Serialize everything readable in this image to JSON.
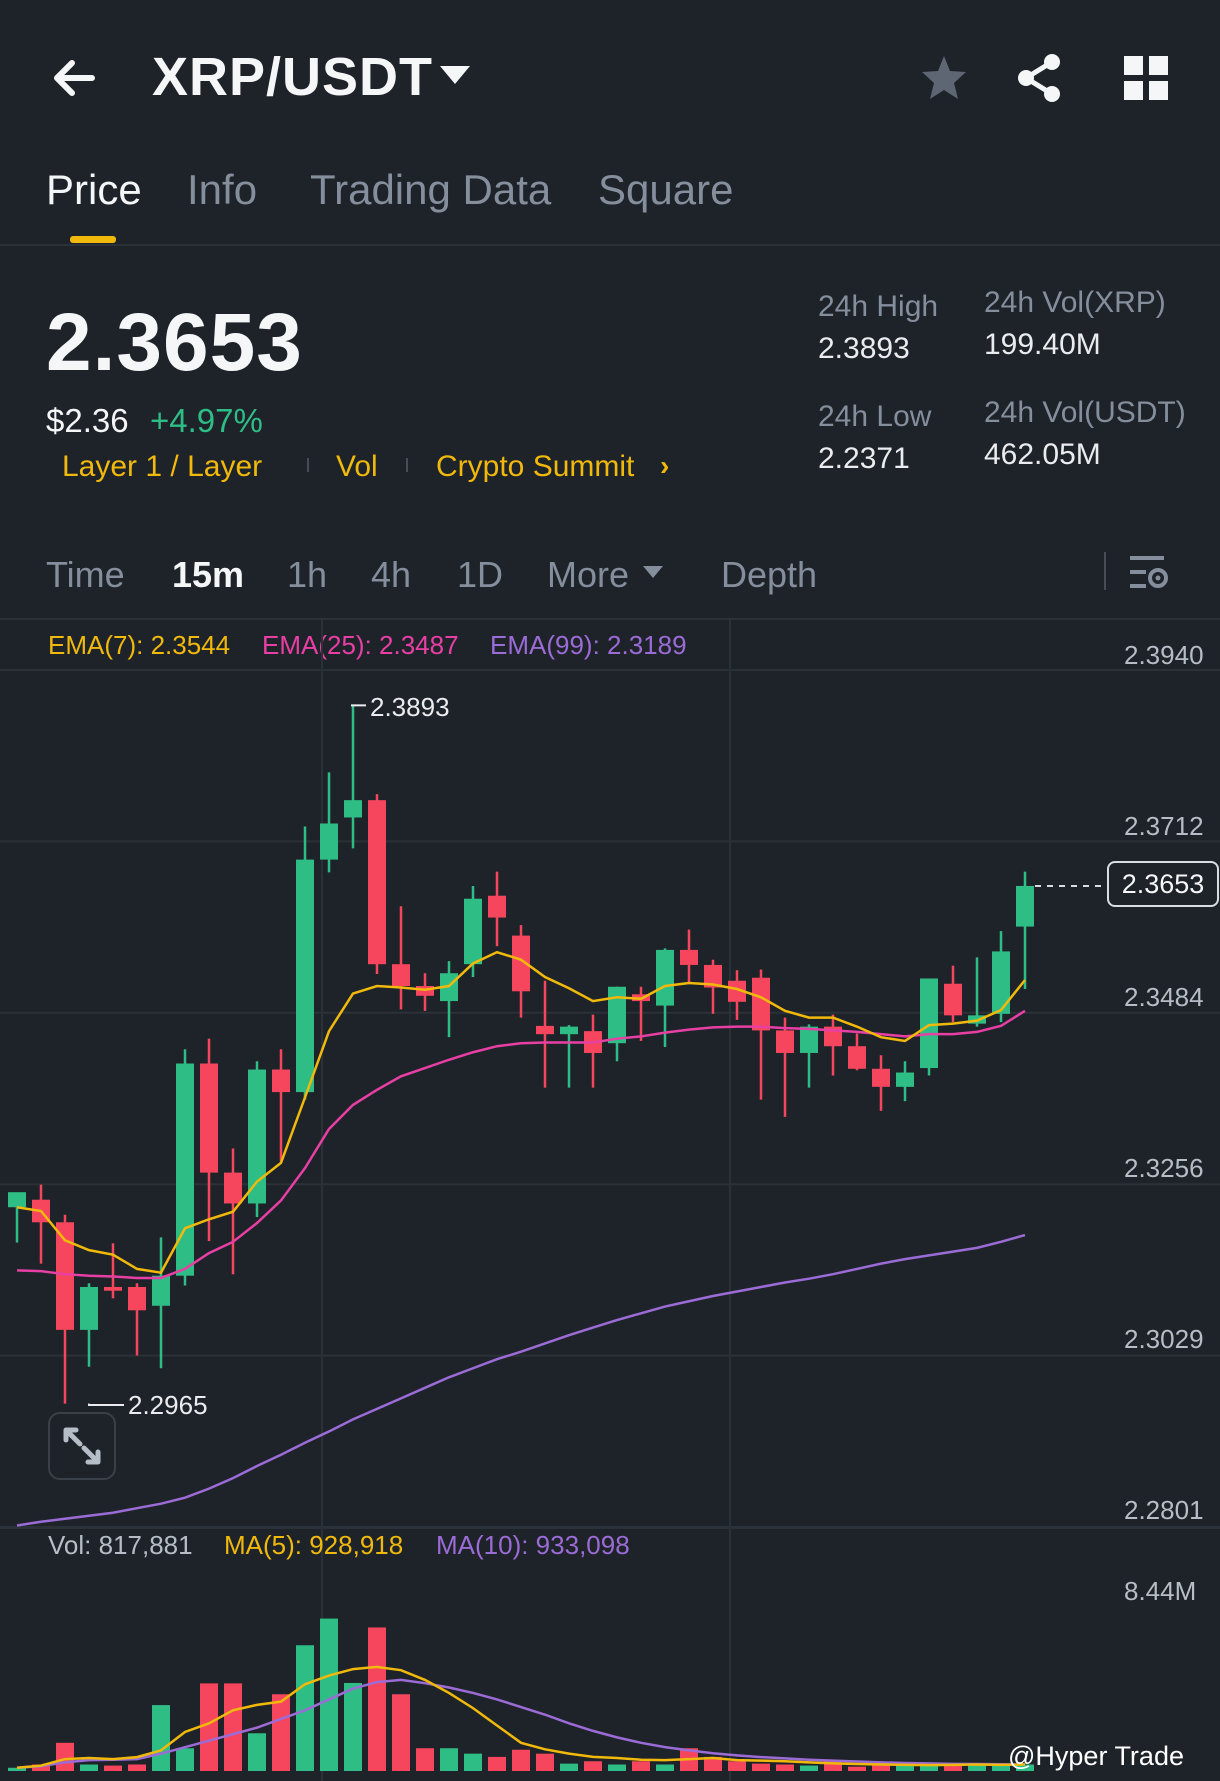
{
  "header": {
    "pair": "XRP/USDT",
    "icons": [
      "back-arrow-icon",
      "star-icon",
      "share-icon",
      "grid-menu-icon"
    ]
  },
  "tabs": [
    "Price",
    "Info",
    "Trading Data",
    "Square"
  ],
  "ticker": {
    "price": "2.3653",
    "usd_price": "$2.36",
    "change": "+4.97%",
    "tags": [
      "Layer 1 / Layer",
      "Vol",
      "Crypto Summit"
    ],
    "high_label": "24h High",
    "high_value": "2.3893",
    "low_label": "24h Low",
    "low_value": "2.2371",
    "vol_xrp_label": "24h Vol(XRP)",
    "vol_xrp_value": "199.40M",
    "vol_usdt_label": "24h Vol(USDT)",
    "vol_usdt_value": "462.05M"
  },
  "timeframes": [
    "Time",
    "15m",
    "1h",
    "4h",
    "1D",
    "More",
    "Depth"
  ],
  "active_timeframe": "15m",
  "ema_legend": {
    "ema7": "EMA(7): 2.3544",
    "ema25": "EMA(25): 2.3487",
    "ema99": "EMA(99): 2.3189"
  },
  "price_axis": [
    "2.3940",
    "2.3712",
    "2.3484",
    "2.3256",
    "2.3029",
    "2.2801"
  ],
  "current_price_tag": "2.3653",
  "marked_high": "2.3893",
  "marked_low": "2.2965",
  "volume_legend": {
    "vol": "Vol: 817,881",
    "ma5": "MA(5): 928,918",
    "ma10": "MA(10): 933,098"
  },
  "volume_axis_top": "8.44M",
  "watermark": "@Hyper Trade",
  "colors": {
    "background": "#1e2329",
    "up": "#2ebd85",
    "down": "#f6465d",
    "accent": "#f0b90b",
    "ema7": "#f0b90b",
    "ema25": "#e83fa5",
    "ema99": "#9b6bd6"
  },
  "chart_data": {
    "type": "candlestick",
    "ylim": [
      2.2801,
      2.394
    ],
    "candles": [
      {
        "o": 2.3226,
        "h": 2.3236,
        "l": 2.3179,
        "c": 2.3246
      },
      {
        "o": 2.3236,
        "h": 2.3256,
        "l": 2.3151,
        "c": 2.3206
      },
      {
        "o": 2.3206,
        "h": 2.3216,
        "l": 2.2965,
        "c": 2.3063
      },
      {
        "o": 2.3063,
        "h": 2.3125,
        "l": 2.3014,
        "c": 2.312
      },
      {
        "o": 2.312,
        "h": 2.3178,
        "l": 2.3105,
        "c": 2.3115
      },
      {
        "o": 2.312,
        "h": 2.3125,
        "l": 2.3029,
        "c": 2.3089
      },
      {
        "o": 2.3095,
        "h": 2.3186,
        "l": 2.3012,
        "c": 2.3135
      },
      {
        "o": 2.3135,
        "h": 2.3436,
        "l": 2.3122,
        "c": 2.3417
      },
      {
        "o": 2.3417,
        "h": 2.345,
        "l": 2.3181,
        "c": 2.3272
      },
      {
        "o": 2.3272,
        "h": 2.3304,
        "l": 2.3137,
        "c": 2.3231
      },
      {
        "o": 2.3231,
        "h": 2.342,
        "l": 2.3213,
        "c": 2.3409
      },
      {
        "o": 2.3409,
        "h": 2.3436,
        "l": 2.3287,
        "c": 2.3379
      },
      {
        "o": 2.3379,
        "h": 2.3732,
        "l": 2.3369,
        "c": 2.3688
      },
      {
        "o": 2.3688,
        "h": 2.3804,
        "l": 2.3671,
        "c": 2.3736
      },
      {
        "o": 2.3744,
        "h": 2.3893,
        "l": 2.3703,
        "c": 2.3767
      },
      {
        "o": 2.3767,
        "h": 2.3775,
        "l": 2.3536,
        "c": 2.3549
      },
      {
        "o": 2.3549,
        "h": 2.3626,
        "l": 2.3489,
        "c": 2.352
      },
      {
        "o": 2.352,
        "h": 2.3537,
        "l": 2.3487,
        "c": 2.3507
      },
      {
        "o": 2.35,
        "h": 2.3553,
        "l": 2.3452,
        "c": 2.3537
      },
      {
        "o": 2.3549,
        "h": 2.3653,
        "l": 2.3532,
        "c": 2.3636
      },
      {
        "o": 2.364,
        "h": 2.3672,
        "l": 2.3573,
        "c": 2.3611
      },
      {
        "o": 2.3587,
        "h": 2.3601,
        "l": 2.3478,
        "c": 2.3513
      },
      {
        "o": 2.3467,
        "h": 2.3527,
        "l": 2.3385,
        "c": 2.3456
      },
      {
        "o": 2.3456,
        "h": 2.3468,
        "l": 2.3385,
        "c": 2.3466
      },
      {
        "o": 2.346,
        "h": 2.3482,
        "l": 2.3385,
        "c": 2.3431
      },
      {
        "o": 2.3444,
        "h": 2.3519,
        "l": 2.342,
        "c": 2.3519
      },
      {
        "o": 2.3509,
        "h": 2.3519,
        "l": 2.3447,
        "c": 2.35
      },
      {
        "o": 2.3494,
        "h": 2.357,
        "l": 2.3439,
        "c": 2.3568
      },
      {
        "o": 2.3568,
        "h": 2.3595,
        "l": 2.3523,
        "c": 2.3548
      },
      {
        "o": 2.3548,
        "h": 2.3555,
        "l": 2.3483,
        "c": 2.3518
      },
      {
        "o": 2.3527,
        "h": 2.3541,
        "l": 2.3475,
        "c": 2.3499
      },
      {
        "o": 2.3531,
        "h": 2.3542,
        "l": 2.3369,
        "c": 2.3461
      },
      {
        "o": 2.3461,
        "h": 2.3478,
        "l": 2.3346,
        "c": 2.3431
      },
      {
        "o": 2.3431,
        "h": 2.3469,
        "l": 2.3385,
        "c": 2.3466
      },
      {
        "o": 2.3466,
        "h": 2.3482,
        "l": 2.3401,
        "c": 2.344
      },
      {
        "o": 2.344,
        "h": 2.3457,
        "l": 2.3408,
        "c": 2.341
      },
      {
        "o": 2.341,
        "h": 2.3428,
        "l": 2.3354,
        "c": 2.3386
      },
      {
        "o": 2.3386,
        "h": 2.342,
        "l": 2.3367,
        "c": 2.3405
      },
      {
        "o": 2.3411,
        "h": 2.353,
        "l": 2.3401,
        "c": 2.353
      },
      {
        "o": 2.3523,
        "h": 2.3547,
        "l": 2.3472,
        "c": 2.3481
      },
      {
        "o": 2.347,
        "h": 2.3558,
        "l": 2.3466,
        "c": 2.3481
      },
      {
        "o": 2.3483,
        "h": 2.3593,
        "l": 2.3472,
        "c": 2.3566
      },
      {
        "o": 2.3599,
        "h": 2.3672,
        "l": 2.3516,
        "c": 2.3653
      }
    ],
    "ema7": [
      2.3226,
      2.3221,
      2.3182,
      2.3169,
      2.3163,
      2.3144,
      2.3139,
      2.3198,
      2.321,
      2.322,
      2.326,
      2.3285,
      2.3372,
      2.346,
      2.351,
      2.352,
      2.3518,
      2.3515,
      2.352,
      2.355,
      2.3565,
      2.3555,
      2.3532,
      2.3517,
      2.35,
      2.3505,
      2.3503,
      2.352,
      2.3524,
      2.3522,
      2.3516,
      2.3505,
      2.3487,
      2.3478,
      2.3478,
      2.3466,
      2.3452,
      2.3447,
      2.3468,
      2.347,
      2.3474,
      2.3488,
      2.3528
    ],
    "ema25": [
      2.3142,
      2.3141,
      2.3137,
      2.3135,
      2.3134,
      2.3132,
      2.3132,
      2.3144,
      2.3165,
      2.318,
      2.3205,
      2.3235,
      2.3278,
      2.333,
      2.3362,
      2.3382,
      2.34,
      2.3411,
      2.3422,
      2.3432,
      2.344,
      2.3444,
      2.3445,
      2.3445,
      2.3445,
      2.345,
      2.3453,
      2.3458,
      2.3462,
      2.3465,
      2.3466,
      2.3466,
      2.3464,
      2.3463,
      2.3461,
      2.3459,
      2.3456,
      2.3453,
      2.3456,
      2.3456,
      2.3459,
      2.3467,
      2.3487
    ],
    "ema99": [
      2.2803,
      2.2808,
      2.2812,
      2.2816,
      2.282,
      2.2826,
      2.2832,
      2.284,
      2.2852,
      2.2866,
      2.2882,
      2.2897,
      2.2913,
      2.2928,
      2.2944,
      2.2958,
      2.2972,
      2.2986,
      2.3,
      2.3012,
      2.3024,
      2.3034,
      2.3045,
      2.3056,
      2.3066,
      2.3076,
      2.3085,
      2.3094,
      2.3101,
      2.3108,
      2.3114,
      2.312,
      2.3126,
      2.3131,
      2.3137,
      2.3144,
      2.3151,
      2.3157,
      2.3162,
      2.3167,
      2.3172,
      2.318,
      2.3189
    ],
    "volume": [
      0.15,
      0.3,
      1.3,
      0.3,
      0.25,
      0.3,
      3.04,
      1.05,
      4.04,
      4.04,
      1.74,
      3.54,
      5.8,
      7.03,
      4.06,
      6.62,
      3.54,
      1.05,
      1.05,
      0.8,
      0.65,
      0.98,
      0.8,
      0.34,
      0.45,
      0.3,
      0.45,
      0.3,
      1.05,
      0.65,
      0.45,
      0.34,
      0.3,
      0.25,
      0.45,
      0.2,
      0.3,
      0.25,
      0.3,
      0.3,
      0.3,
      0.3,
      0.3
    ],
    "vol_ma5": [
      0.15,
      0.25,
      0.55,
      0.6,
      0.55,
      0.64,
      0.95,
      1.8,
      2.2,
      2.8,
      3.05,
      3.2,
      4.0,
      4.4,
      4.7,
      4.8,
      4.65,
      4.2,
      3.6,
      2.9,
      2.1,
      1.3,
      1.0,
      0.8,
      0.65,
      0.6,
      0.52,
      0.5,
      0.55,
      0.6,
      0.5,
      0.48,
      0.45,
      0.4,
      0.35,
      0.32,
      0.3,
      0.28,
      0.27,
      0.28,
      0.3,
      0.28,
      0.3
    ],
    "vol_ma10": [
      0.15,
      0.22,
      0.4,
      0.5,
      0.52,
      0.55,
      0.8,
      1.1,
      1.4,
      1.7,
      2.0,
      2.4,
      2.8,
      3.3,
      3.8,
      4.1,
      4.2,
      4.05,
      3.85,
      3.6,
      3.3,
      2.95,
      2.6,
      2.2,
      1.85,
      1.55,
      1.3,
      1.1,
      0.95,
      0.82,
      0.72,
      0.64,
      0.58,
      0.52,
      0.48,
      0.44,
      0.4,
      0.37,
      0.35,
      0.33,
      0.32,
      0.31,
      0.3
    ],
    "volume_max": 8.44
  }
}
